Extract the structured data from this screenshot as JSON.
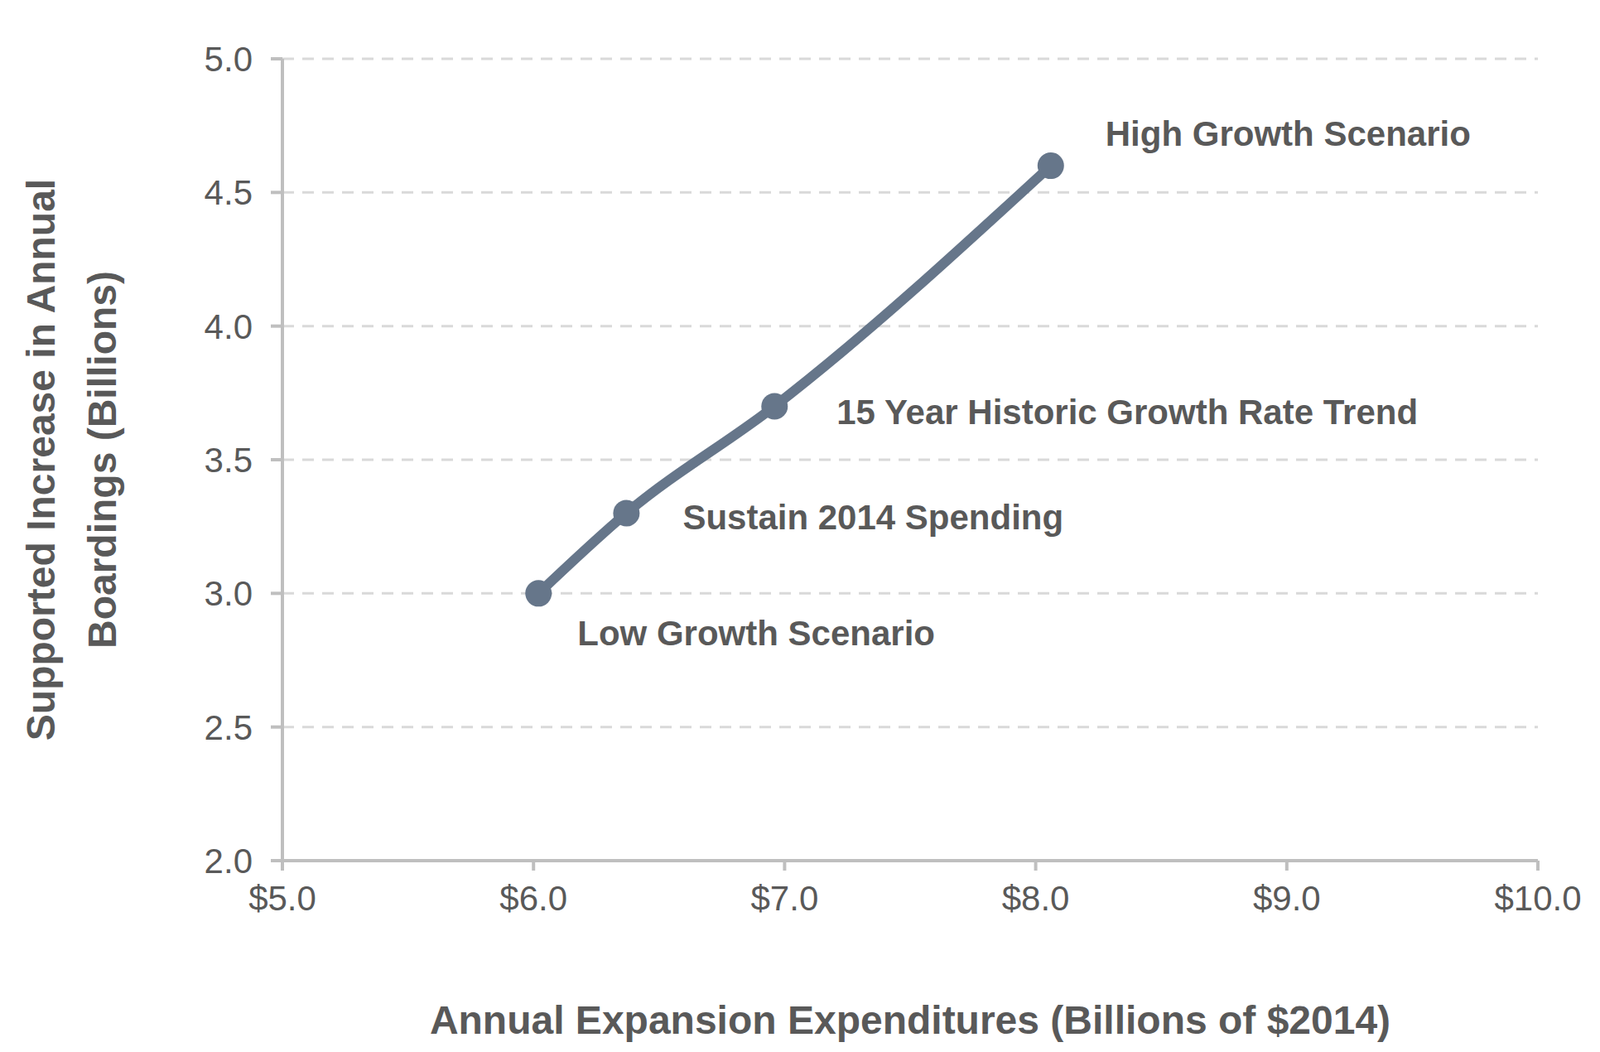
{
  "chart_data": {
    "type": "line",
    "x_label": "Annual Expansion Expenditures (Billions of $2014)",
    "y_label": "Supported Increase in Annual Boardings (Billions)",
    "x": [
      6.02,
      6.37,
      6.96,
      8.06
    ],
    "values": [
      3.0,
      3.3,
      3.7,
      4.6
    ],
    "point_labels": [
      "Low Growth Scenario",
      "Sustain 2014 Spending",
      "15 Year Historic Growth Rate Trend",
      "High Growth Scenario"
    ],
    "color": "#66768a",
    "marker": "circle",
    "xlim": [
      5,
      10
    ],
    "xticks": [
      {
        "value": 5,
        "label": "$5.0"
      },
      {
        "value": 6,
        "label": "$6.0"
      },
      {
        "value": 7,
        "label": "$7.0"
      },
      {
        "value": 8,
        "label": "$8.0"
      },
      {
        "value": 9,
        "label": "$9.0"
      },
      {
        "value": 10,
        "label": "$10.0"
      }
    ],
    "ylim": [
      2,
      5
    ],
    "yticks": [
      {
        "value": 2,
        "label": "2.0"
      },
      2.5,
      {
        "value": 3,
        "label": "3.0"
      },
      3.5,
      {
        "value": 4,
        "label": "4.0"
      },
      4.5,
      {
        "value": 5,
        "label": "5.0"
      }
    ],
    "grid": true
  }
}
